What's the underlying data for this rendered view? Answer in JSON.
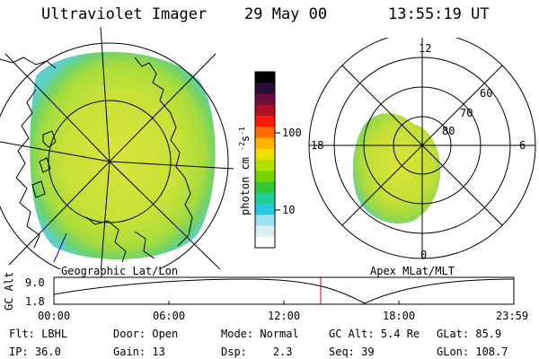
{
  "header": {
    "title": "Ultraviolet Imager",
    "date": "29 May 00",
    "time": "13:55:19 UT"
  },
  "left_map": {
    "label": "Geographic Lat/Lon"
  },
  "right_map": {
    "label": "Apex MLat/MLT",
    "mlt_labels": {
      "top": "12",
      "left": "18",
      "right": "6",
      "bottom": "0"
    },
    "lat_labels": [
      "60",
      "70",
      "80"
    ]
  },
  "colorbar": {
    "unit_label": "photon cm",
    "unit_exp": "-2",
    "unit_s": "s",
    "unit_exp2": "-1",
    "tick_100": "100",
    "tick_10": "10",
    "colors": [
      "#000000",
      "#2a0d3a",
      "#6a0f3c",
      "#b01020",
      "#ff1a10",
      "#ff6a00",
      "#ffb400",
      "#f0e000",
      "#b6e000",
      "#78d400",
      "#2fc63a",
      "#1fcf9a",
      "#26c9e0",
      "#9de2ee",
      "#d8f0f4",
      "#ffffff"
    ]
  },
  "altitude_plot": {
    "ylabel": "GC Alt",
    "ymax_label": "9.0",
    "ymin_label": "1.8",
    "time_ticks": [
      "00:00",
      "06:00",
      "12:00",
      "18:00",
      "23:59"
    ],
    "current_time_fraction": 0.58,
    "indicator_color": "#cc0000"
  },
  "info": {
    "flt": {
      "label": "Flt:",
      "value": "LBHL"
    },
    "ip": {
      "label": "IP:",
      "value": "36.0"
    },
    "door": {
      "label": "Door:",
      "value": "Open"
    },
    "gain": {
      "label": "Gain:",
      "value": "13"
    },
    "mode": {
      "label": "Mode:",
      "value": "Normal"
    },
    "dsp": {
      "label": "Dsp:",
      "value": "2.3"
    },
    "gcalt": {
      "label": "GC Alt:",
      "value": "5.4 Re"
    },
    "seq": {
      "label": "Seq:",
      "value": "39"
    },
    "glat": {
      "label": "GLat:",
      "value": "85.9"
    },
    "glon": {
      "label": "GLon:",
      "value": "108.7"
    }
  }
}
